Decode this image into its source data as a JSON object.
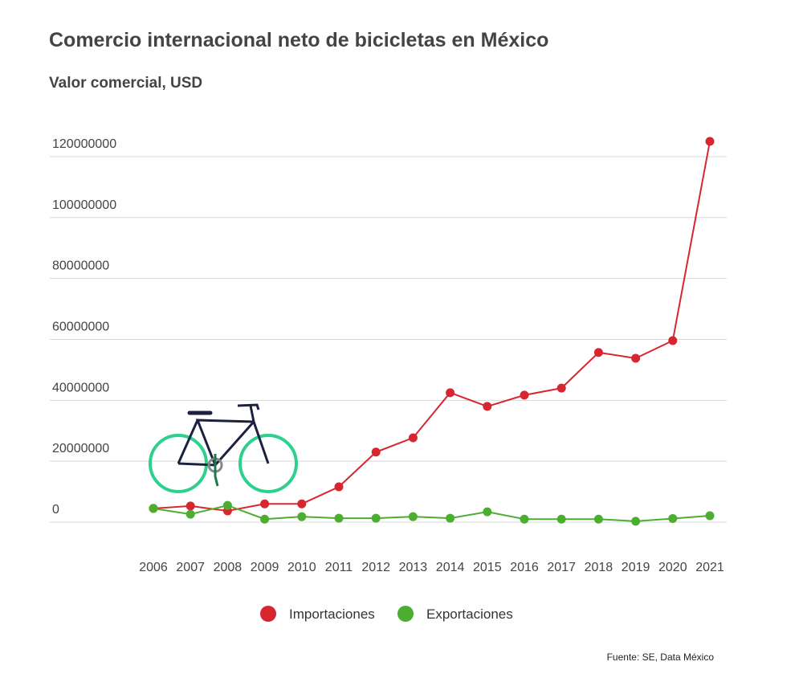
{
  "chart_data": {
    "type": "line",
    "title": "Comercio internacional neto de bicicletas en México",
    "subtitle": "Valor comercial, USD",
    "source": "Fuente: SE, Data México",
    "categories": [
      "2006",
      "2007",
      "2008",
      "2009",
      "2010",
      "2011",
      "2012",
      "2013",
      "2014",
      "2015",
      "2016",
      "2017",
      "2018",
      "2019",
      "2020",
      "2021"
    ],
    "series": [
      {
        "name": "Importaciones",
        "color": "#d7262f",
        "values": [
          4500000,
          5300000,
          3700000,
          6000000,
          6000000,
          11600000,
          23000000,
          27700000,
          42500000,
          38000000,
          41700000,
          44000000,
          55700000,
          53800000,
          59600000,
          125000000
        ]
      },
      {
        "name": "Exportaciones",
        "color": "#4cae31",
        "values": [
          4500000,
          2600000,
          5500000,
          1000000,
          1800000,
          1300000,
          1300000,
          1800000,
          1300000,
          3400000,
          1000000,
          1000000,
          1000000,
          300000,
          1200000,
          2100000
        ]
      }
    ],
    "ylim": [
      0,
      125000000
    ],
    "yticks": [
      0,
      20000000,
      40000000,
      60000000,
      80000000,
      100000000,
      120000000
    ],
    "grid": true
  }
}
